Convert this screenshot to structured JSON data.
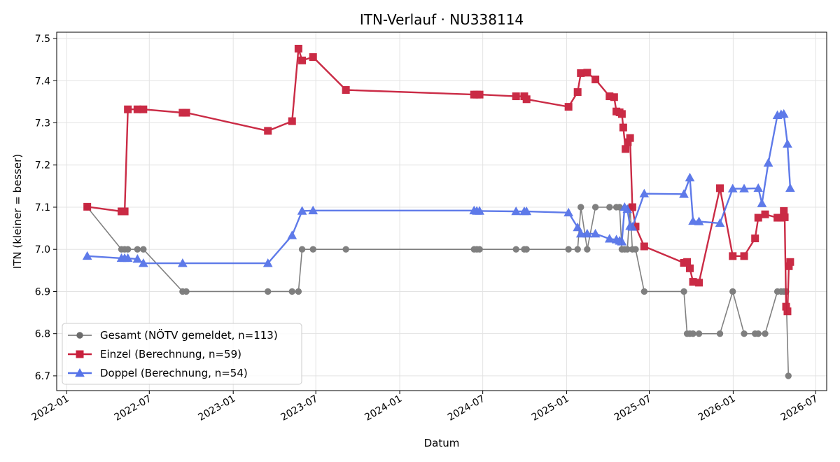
{
  "chart_data": {
    "type": "line",
    "title": "ITN-Verlauf · NU338114",
    "xlabel": "Datum",
    "ylabel": "ITN  (kleiner = besser)",
    "ylim": [
      6.665,
      7.515
    ],
    "xlim": [
      "2021-12-10",
      "2026-07-25"
    ],
    "x_ticks": [
      "2022-01",
      "2022-07",
      "2023-01",
      "2023-07",
      "2024-01",
      "2024-07",
      "2025-01",
      "2025-07",
      "2026-01",
      "2026-07"
    ],
    "y_ticks": [
      "6.7",
      "6.8",
      "6.9",
      "7.0",
      "7.1",
      "7.2",
      "7.3",
      "7.4",
      "7.5"
    ],
    "grid": true,
    "legend_position": "lower-left",
    "series": [
      {
        "name": "Gesamt (NÖTV gemeldet, n=113)",
        "color": "#6b6b6b",
        "marker": "circle",
        "points": [
          [
            "2022-02-15",
            7.1
          ],
          [
            "2022-05-01",
            7.0
          ],
          [
            "2022-05-08",
            7.0
          ],
          [
            "2022-05-15",
            7.0
          ],
          [
            "2022-06-05",
            7.0
          ],
          [
            "2022-06-18",
            7.0
          ],
          [
            "2022-09-12",
            6.9
          ],
          [
            "2022-09-20",
            6.9
          ],
          [
            "2023-03-18",
            6.9
          ],
          [
            "2023-05-10",
            6.9
          ],
          [
            "2023-05-24",
            6.9
          ],
          [
            "2023-06-01",
            7.0
          ],
          [
            "2023-06-25",
            7.0
          ],
          [
            "2023-09-05",
            7.0
          ],
          [
            "2024-06-12",
            7.0
          ],
          [
            "2024-06-18",
            7.0
          ],
          [
            "2024-06-24",
            7.0
          ],
          [
            "2024-09-12",
            7.0
          ],
          [
            "2024-09-30",
            7.0
          ],
          [
            "2024-10-05",
            7.0
          ],
          [
            "2025-01-05",
            7.0
          ],
          [
            "2025-01-25",
            7.0
          ],
          [
            "2025-02-01",
            7.1
          ],
          [
            "2025-02-15",
            7.0
          ],
          [
            "2025-03-05",
            7.1
          ],
          [
            "2025-04-05",
            7.1
          ],
          [
            "2025-04-20",
            7.1
          ],
          [
            "2025-04-27",
            7.1
          ],
          [
            "2025-05-02",
            7.0
          ],
          [
            "2025-05-08",
            7.0
          ],
          [
            "2025-05-14",
            7.0
          ],
          [
            "2025-05-20",
            7.1
          ],
          [
            "2025-05-25",
            7.0
          ],
          [
            "2025-06-01",
            7.0
          ],
          [
            "2025-06-20",
            6.9
          ],
          [
            "2025-09-15",
            6.9
          ],
          [
            "2025-09-22",
            6.8
          ],
          [
            "2025-09-28",
            6.8
          ],
          [
            "2025-10-05",
            6.8
          ],
          [
            "2025-10-18",
            6.8
          ],
          [
            "2025-12-03",
            6.8
          ],
          [
            "2025-12-31",
            6.9
          ],
          [
            "2026-01-25",
            6.8
          ],
          [
            "2026-02-18",
            6.8
          ],
          [
            "2026-02-25",
            6.8
          ],
          [
            "2026-03-12",
            6.8
          ],
          [
            "2026-04-08",
            6.9
          ],
          [
            "2026-04-16",
            6.9
          ],
          [
            "2026-04-22",
            6.9
          ],
          [
            "2026-04-27",
            6.9
          ],
          [
            "2026-05-02",
            6.7
          ]
        ]
      },
      {
        "name": "Einzel (Berechnung, n=59)",
        "color": "#c8203c",
        "marker": "square",
        "points": [
          [
            "2022-02-15",
            7.101
          ],
          [
            "2022-05-01",
            7.09
          ],
          [
            "2022-05-08",
            7.09
          ],
          [
            "2022-05-15",
            7.332
          ],
          [
            "2022-06-05",
            7.332
          ],
          [
            "2022-06-18",
            7.332
          ],
          [
            "2022-09-12",
            7.324
          ],
          [
            "2022-09-20",
            7.324
          ],
          [
            "2023-03-18",
            7.281
          ],
          [
            "2023-05-10",
            7.304
          ],
          [
            "2023-05-24",
            7.476
          ],
          [
            "2023-06-01",
            7.448
          ],
          [
            "2023-06-25",
            7.456
          ],
          [
            "2023-09-05",
            7.378
          ],
          [
            "2024-06-12",
            7.367
          ],
          [
            "2024-06-18",
            7.367
          ],
          [
            "2024-06-24",
            7.367
          ],
          [
            "2024-09-12",
            7.363
          ],
          [
            "2024-09-30",
            7.363
          ],
          [
            "2024-10-05",
            7.356
          ],
          [
            "2025-01-05",
            7.338
          ],
          [
            "2025-01-25",
            7.373
          ],
          [
            "2025-02-01",
            7.418
          ],
          [
            "2025-02-15",
            7.419
          ],
          [
            "2025-03-05",
            7.403
          ],
          [
            "2025-04-05",
            7.363
          ],
          [
            "2025-04-15",
            7.361
          ],
          [
            "2025-04-20",
            7.327
          ],
          [
            "2025-04-27",
            7.325
          ],
          [
            "2025-05-02",
            7.321
          ],
          [
            "2025-05-05",
            7.289
          ],
          [
            "2025-05-10",
            7.238
          ],
          [
            "2025-05-15",
            7.254
          ],
          [
            "2025-05-20",
            7.264
          ],
          [
            "2025-05-25",
            7.1
          ],
          [
            "2025-06-01",
            7.054
          ],
          [
            "2025-06-20",
            7.007
          ],
          [
            "2025-09-15",
            6.968
          ],
          [
            "2025-09-22",
            6.97
          ],
          [
            "2025-09-28",
            6.955
          ],
          [
            "2025-10-05",
            6.923
          ],
          [
            "2025-10-18",
            6.921
          ],
          [
            "2025-12-03",
            7.145
          ],
          [
            "2025-12-31",
            6.984
          ],
          [
            "2026-01-25",
            6.984
          ],
          [
            "2026-02-18",
            7.026
          ],
          [
            "2026-02-25",
            7.075
          ],
          [
            "2026-03-12",
            7.083
          ],
          [
            "2026-04-08",
            7.075
          ],
          [
            "2026-04-16",
            7.075
          ],
          [
            "2026-04-22",
            7.091
          ],
          [
            "2026-04-24",
            7.076
          ],
          [
            "2026-04-27",
            6.864
          ],
          [
            "2026-04-30",
            6.853
          ],
          [
            "2026-05-03",
            6.96
          ],
          [
            "2026-05-06",
            6.97
          ]
        ]
      },
      {
        "name": "Doppel (Berechnung, n=54)",
        "color": "#5673e8",
        "marker": "triangle",
        "points": [
          [
            "2022-02-15",
            6.984
          ],
          [
            "2022-05-01",
            6.979
          ],
          [
            "2022-05-08",
            6.979
          ],
          [
            "2022-05-15",
            6.979
          ],
          [
            "2022-06-05",
            6.977
          ],
          [
            "2022-06-18",
            6.967
          ],
          [
            "2022-09-12",
            6.967
          ],
          [
            "2023-03-18",
            6.967
          ],
          [
            "2023-05-10",
            7.033
          ],
          [
            "2023-06-01",
            7.091
          ],
          [
            "2023-06-25",
            7.092
          ],
          [
            "2024-06-12",
            7.092
          ],
          [
            "2024-06-18",
            7.091
          ],
          [
            "2024-06-24",
            7.091
          ],
          [
            "2024-09-12",
            7.09
          ],
          [
            "2024-09-30",
            7.09
          ],
          [
            "2024-10-05",
            7.09
          ],
          [
            "2025-01-05",
            7.087
          ],
          [
            "2025-01-25",
            7.052
          ],
          [
            "2025-02-01",
            7.037
          ],
          [
            "2025-02-15",
            7.037
          ],
          [
            "2025-03-05",
            7.037
          ],
          [
            "2025-04-05",
            7.025
          ],
          [
            "2025-04-20",
            7.023
          ],
          [
            "2025-04-27",
            7.02
          ],
          [
            "2025-05-02",
            7.018
          ],
          [
            "2025-05-08",
            7.1
          ],
          [
            "2025-05-14",
            7.095
          ],
          [
            "2025-05-20",
            7.055
          ],
          [
            "2025-05-25",
            7.053
          ],
          [
            "2025-06-20",
            7.132
          ],
          [
            "2025-09-15",
            7.131
          ],
          [
            "2025-09-28",
            7.17
          ],
          [
            "2025-10-05",
            7.067
          ],
          [
            "2025-10-18",
            7.066
          ],
          [
            "2025-12-03",
            7.062
          ],
          [
            "2025-12-31",
            7.144
          ],
          [
            "2026-01-25",
            7.144
          ],
          [
            "2026-02-25",
            7.145
          ],
          [
            "2026-03-05",
            7.109
          ],
          [
            "2026-03-19",
            7.205
          ],
          [
            "2026-04-08",
            7.318
          ],
          [
            "2026-04-16",
            7.32
          ],
          [
            "2026-04-22",
            7.321
          ],
          [
            "2026-04-30",
            7.25
          ],
          [
            "2026-05-06",
            7.145
          ]
        ]
      }
    ]
  }
}
